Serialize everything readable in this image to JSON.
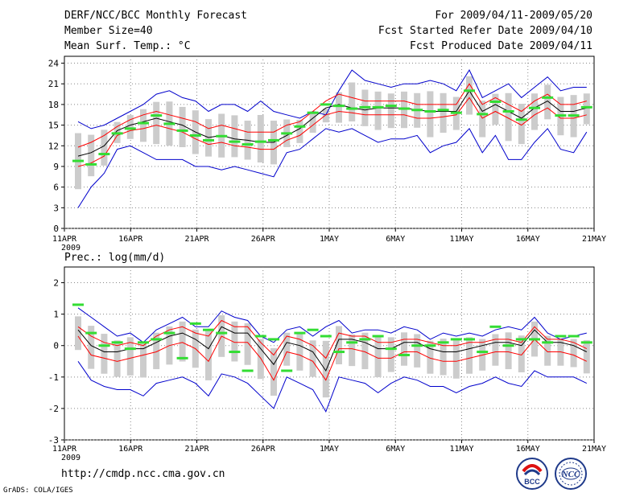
{
  "header": {
    "title": "DERF/NCC/BCC Monthly Forecast",
    "member_size": "Member Size=40",
    "variable": "Mean Surf. Temp.: °C",
    "forecast_period": "For 2009/04/11-2009/05/20",
    "fcst_started": "Fcst Started Refer Date 2009/04/10",
    "fcst_produced": "Fcst Produced Date 2009/04/11"
  },
  "footer": {
    "url": "http://cmdp.ncc.cma.gov.cn",
    "credit": "GrADS: COLA/IGES",
    "logo_bcc": "BCC",
    "logo_ncc": "NCC"
  },
  "colors": {
    "mean": "#000000",
    "inner_spread": "#ff0000",
    "outer_spread": "#0000cc",
    "observation_marker": "#33dd33",
    "member_box": "#cccccc",
    "grid": "#888888"
  },
  "chart_data": [
    {
      "type": "line",
      "title": "Mean Surf. Temp.: °C",
      "x_ticks": [
        "11APR",
        "16APR",
        "21APR",
        "26APR",
        "1MAY",
        "6MAY",
        "11MAY",
        "16MAY",
        "21MAY"
      ],
      "x_year_label": "2009",
      "y_ticks": [
        0,
        3,
        6,
        9,
        12,
        15,
        18,
        21,
        24
      ],
      "ylim": [
        0,
        25
      ],
      "days": 40,
      "series": [
        {
          "name": "max",
          "values": [
            15.5,
            14.5,
            15,
            16,
            17,
            18,
            19.5,
            20,
            19,
            18.5,
            17,
            18,
            18,
            17,
            18.5,
            17,
            16.5,
            16,
            17,
            16.5,
            20,
            23,
            21.5,
            21,
            20.5,
            21,
            21,
            21.5,
            21,
            20,
            23,
            19,
            20,
            21,
            19,
            20.5,
            22,
            20,
            20.5,
            20.5
          ]
        },
        {
          "name": "min",
          "values": [
            3,
            6,
            8,
            11.5,
            12,
            11,
            10,
            10,
            10,
            9,
            9,
            8.5,
            9,
            8.5,
            8,
            7.5,
            11,
            11.5,
            13,
            14.5,
            14,
            14.5,
            13.5,
            12.5,
            13,
            13,
            13.5,
            11,
            12,
            12.5,
            14.5,
            11,
            13.5,
            10,
            10,
            12.5,
            14.5,
            11.5,
            11,
            14
          ]
        },
        {
          "name": "upper",
          "values": [
            11.8,
            12.5,
            13.5,
            14.8,
            15.8,
            16.5,
            17,
            16.5,
            16,
            15.5,
            14.5,
            15,
            14.5,
            14,
            14,
            14,
            15,
            15.5,
            17,
            18.5,
            19.5,
            19,
            18.5,
            18.5,
            18.5,
            18.5,
            18,
            18,
            18,
            18,
            21,
            18,
            19,
            18,
            17,
            18.5,
            19.5,
            18,
            18,
            18.5
          ]
        },
        {
          "name": "mean",
          "values": [
            10.5,
            11,
            12,
            14.2,
            15,
            15.5,
            16,
            15.5,
            15,
            14,
            13.2,
            13.5,
            13,
            12.8,
            12.5,
            12.5,
            13.5,
            14.5,
            16,
            17.5,
            18,
            17.5,
            17.2,
            17.5,
            17.5,
            17.5,
            17.2,
            17,
            17,
            17,
            20,
            17,
            18,
            17,
            16,
            17.5,
            18.5,
            17,
            17,
            17.5
          ]
        },
        {
          "name": "lower",
          "values": [
            9,
            9.5,
            10.5,
            13.5,
            14.2,
            14.5,
            15,
            14.5,
            14,
            13,
            12.2,
            12.5,
            12,
            11.8,
            11.5,
            11.5,
            12.8,
            13.5,
            15,
            16.5,
            17,
            16.8,
            16.5,
            16.5,
            16.5,
            16.5,
            16,
            16,
            16.2,
            16.5,
            19,
            16,
            17,
            16,
            15,
            16.5,
            17.5,
            16,
            16,
            16.5
          ]
        },
        {
          "name": "observed",
          "values": [
            9.8,
            9.3,
            10.8,
            13.8,
            14.5,
            15.3,
            16.4,
            15.2,
            14.2,
            13.5,
            12.8,
            13.4,
            12.6,
            12.2,
            12.6,
            12.8,
            13.8,
            14.8,
            16.8,
            18,
            17.8,
            17.4,
            17.6,
            17.6,
            17.8,
            17.4,
            17.2,
            17,
            17.2,
            16.8,
            20,
            16.6,
            18.4,
            17,
            15.8,
            17.5,
            19,
            16.4,
            16.4,
            17.6
          ]
        }
      ]
    },
    {
      "type": "line",
      "title": "Prec.: log(mm/d)",
      "x_ticks": [
        "11APR",
        "16APR",
        "21APR",
        "26APR",
        "1MAY",
        "6MAY",
        "11MAY",
        "16MAY",
        "21MAY"
      ],
      "x_year_label": "2009",
      "y_ticks": [
        -3,
        -2,
        -1,
        0,
        1,
        2
      ],
      "ylim": [
        -3,
        2.5
      ],
      "days": 40,
      "series": [
        {
          "name": "max",
          "values": [
            1.2,
            0.9,
            0.6,
            0.3,
            0.4,
            0.1,
            0.5,
            0.7,
            0.9,
            0.6,
            0.6,
            1.1,
            0.9,
            0.8,
            0.3,
            0.1,
            0.5,
            0.6,
            0.3,
            0.6,
            0.8,
            0.4,
            0.5,
            0.5,
            0.4,
            0.6,
            0.5,
            0.2,
            0.4,
            0.3,
            0.4,
            0.3,
            0.5,
            0.6,
            0.5,
            0.9,
            0.4,
            0.2,
            0.3,
            0.4
          ]
        },
        {
          "name": "min",
          "values": [
            -0.5,
            -1.1,
            -1.3,
            -1.4,
            -1.4,
            -1.6,
            -1.2,
            -1.1,
            -1.0,
            -1.2,
            -1.6,
            -0.9,
            -1.0,
            -1.2,
            -1.6,
            -2.0,
            -1.0,
            -1.2,
            -1.4,
            -2.1,
            -1.0,
            -1.1,
            -1.2,
            -1.5,
            -1.2,
            -1.0,
            -1.1,
            -1.3,
            -1.3,
            -1.5,
            -1.3,
            -1.2,
            -1.0,
            -1.2,
            -1.3,
            -0.8,
            -1.0,
            -1.0,
            -1.0,
            -1.2
          ]
        },
        {
          "name": "upper",
          "values": [
            0.6,
            0.3,
            0.1,
            0.0,
            0.1,
            0.0,
            0.3,
            0.5,
            0.6,
            0.4,
            0.3,
            0.8,
            0.6,
            0.6,
            0.1,
            -0.3,
            0.3,
            0.2,
            0.0,
            -0.4,
            0.4,
            0.3,
            0.3,
            0.1,
            0.1,
            0.2,
            0.2,
            0.1,
            0.0,
            0.0,
            0.1,
            0.1,
            0.2,
            0.2,
            0.1,
            0.6,
            0.2,
            0.2,
            0.1,
            -0.1
          ]
        },
        {
          "name": "mean",
          "values": [
            0.5,
            0.0,
            -0.2,
            -0.2,
            -0.1,
            -0.1,
            0.1,
            0.3,
            0.4,
            0.2,
            -0.1,
            0.6,
            0.4,
            0.4,
            -0.1,
            -0.6,
            0.1,
            0.0,
            -0.2,
            -0.8,
            0.2,
            0.2,
            0.1,
            -0.1,
            -0.1,
            0.1,
            0.1,
            -0.1,
            -0.2,
            -0.2,
            -0.1,
            0.0,
            0.1,
            0.1,
            0.0,
            0.5,
            0.1,
            0.1,
            0.0,
            -0.2
          ]
        },
        {
          "name": "lower",
          "values": [
            0.3,
            -0.3,
            -0.4,
            -0.5,
            -0.4,
            -0.3,
            -0.2,
            0.0,
            0.1,
            -0.1,
            -0.5,
            0.3,
            0.1,
            0.1,
            -0.4,
            -1.1,
            -0.2,
            -0.3,
            -0.5,
            -1.1,
            -0.1,
            -0.1,
            -0.2,
            -0.4,
            -0.4,
            -0.2,
            -0.2,
            -0.4,
            -0.5,
            -0.5,
            -0.4,
            -0.3,
            -0.2,
            -0.2,
            -0.3,
            0.2,
            -0.2,
            -0.2,
            -0.3,
            -0.5
          ]
        },
        {
          "name": "observed",
          "values": [
            1.3,
            0.4,
            0.0,
            0.1,
            -0.1,
            0.1,
            0.2,
            0.4,
            -0.4,
            0.7,
            0.5,
            0.4,
            -0.2,
            -0.8,
            0.3,
            0.2,
            -0.8,
            0.4,
            0.5,
            0.3,
            -0.2,
            0.1,
            0.2,
            0.3,
            -0.1,
            -0.3,
            0.0,
            0.0,
            0.1,
            0.2,
            0.2,
            -0.2,
            0.6,
            0.0,
            0.2,
            0.2,
            0.1,
            0.3,
            0.3,
            0.1
          ]
        }
      ]
    }
  ]
}
